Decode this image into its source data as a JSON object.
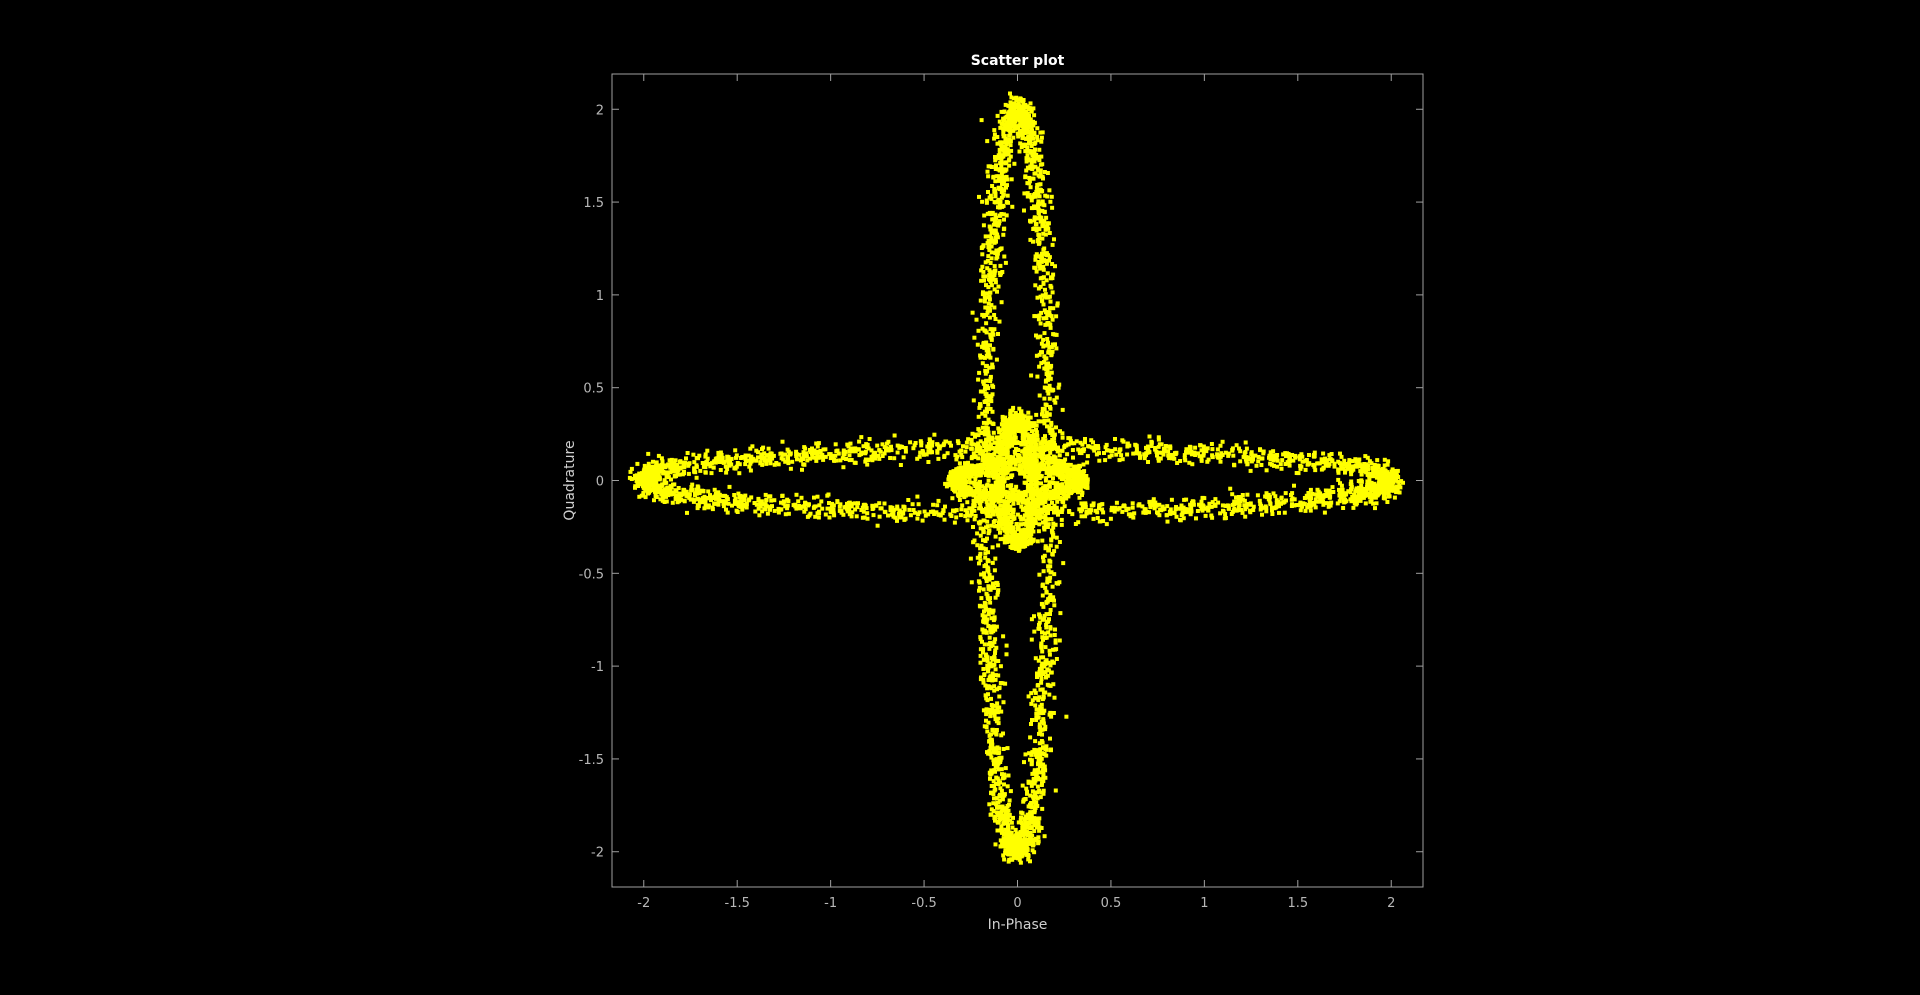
{
  "chart_data": {
    "type": "scatter",
    "title": "Scatter plot",
    "xlabel": "In-Phase",
    "ylabel": "Quadrature",
    "xlim": [
      -2.17,
      2.17
    ],
    "ylim": [
      -2.19,
      2.19
    ],
    "xticks": [
      -2,
      -1.5,
      -1,
      -0.5,
      0,
      0.5,
      1,
      1.5,
      2
    ],
    "yticks": [
      -2,
      -1.5,
      -1,
      -0.5,
      0,
      0.5,
      1,
      1.5,
      2
    ],
    "xtick_labels": [
      "-2",
      "-1.5",
      "-1",
      "-0.5",
      "0",
      "0.5",
      "1",
      "1.5",
      "2"
    ],
    "ytick_labels": [
      "-2",
      "-1.5",
      "-1",
      "-0.5",
      "0",
      "0.5",
      "1",
      "1.5",
      "2"
    ],
    "grid": false,
    "background_color": "#000000",
    "axes_color": "#a0a0a0",
    "marker_color": "#ffff00",
    "series": [
      {
        "shape": "ellipse",
        "center": [
          0,
          0
        ],
        "semi_axis_x": 2.0,
        "semi_axis_y": 0.17,
        "spread": 0.03
      },
      {
        "shape": "ellipse",
        "center": [
          0,
          0
        ],
        "semi_axis_x": 0.17,
        "semi_axis_y": 2.0,
        "spread": 0.03
      },
      {
        "shape": "ellipse",
        "center": [
          0,
          0
        ],
        "semi_axis_x": 0.33,
        "semi_axis_y": 0.09,
        "spread": 0.025
      },
      {
        "shape": "ellipse",
        "center": [
          0,
          0
        ],
        "semi_axis_x": 0.09,
        "semi_axis_y": 0.33,
        "spread": 0.025
      }
    ]
  }
}
